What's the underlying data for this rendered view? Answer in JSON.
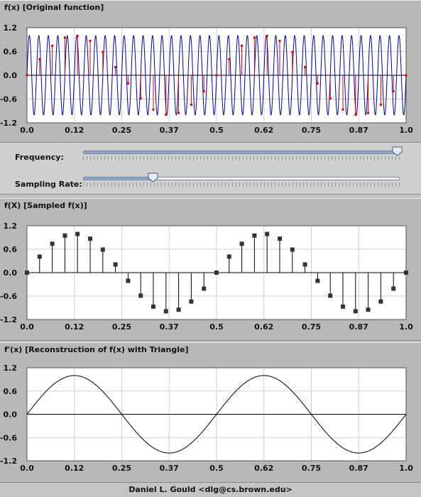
{
  "panels": [
    {
      "title": "f(x) [Original function]"
    },
    {
      "title": "f(X) [Sampled f(x)]"
    },
    {
      "title": "f'(x) [Reconstruction of f(x) with Triangle]"
    }
  ],
  "controls": {
    "frequency": {
      "label": "Frequency:",
      "value": 0.99
    },
    "sampling_rate": {
      "label": "Sampling Rate:",
      "value": 0.22
    }
  },
  "credit": "Daniel L. Gould <dlg@cs.brown.edu>",
  "colors": {
    "wave": "#0000aa",
    "sample": "#dd0000",
    "plot_bg": "#ffffff",
    "grid": "#cfcfcf",
    "stem": "#000000",
    "marker": "#333333"
  },
  "chart_data": [
    {
      "type": "line",
      "title": "f(x) [Original function]",
      "xlim": [
        0,
        1
      ],
      "ylim": [
        -1.2,
        1.2
      ],
      "x_ticks": [
        "0.0",
        "0.12",
        "0.25",
        "0.37",
        "0.5",
        "0.62",
        "0.75",
        "0.87",
        "1.0"
      ],
      "y_ticks": [
        "1.2",
        "0.6",
        "0.0",
        "-0.6",
        "-1.2"
      ],
      "grid": true,
      "series": [
        {
          "kind": "sine",
          "cycles": 40
        },
        {
          "kind": "samples",
          "signal_cycles": 2,
          "count": 30
        }
      ]
    },
    {
      "type": "stem",
      "title": "f(X) [Sampled f(x)]",
      "xlim": [
        0,
        1
      ],
      "ylim": [
        -1.2,
        1.2
      ],
      "x_ticks": [
        "0.0",
        "0.12",
        "0.25",
        "0.37",
        "0.5",
        "0.62",
        "0.75",
        "0.87",
        "1.0"
      ],
      "y_ticks": [
        "1.2",
        "0.6",
        "0.0",
        "-0.6",
        "-1.2"
      ],
      "grid": true,
      "x": [
        0.0,
        0.0333,
        0.0667,
        0.1,
        0.1333,
        0.1667,
        0.2,
        0.2333,
        0.2667,
        0.3,
        0.3333,
        0.3667,
        0.4,
        0.4333,
        0.4667,
        0.5,
        0.5333,
        0.5667,
        0.6,
        0.6333,
        0.6667,
        0.7,
        0.7333,
        0.7667,
        0.8,
        0.8333,
        0.8667,
        0.9,
        0.9333,
        0.9667,
        1.0
      ],
      "values": [
        0.0,
        0.41,
        0.74,
        0.95,
        0.99,
        0.87,
        0.59,
        0.21,
        -0.21,
        -0.59,
        -0.87,
        -0.99,
        -0.95,
        -0.74,
        -0.41,
        0.0,
        0.41,
        0.74,
        0.95,
        0.99,
        0.87,
        0.59,
        0.21,
        -0.21,
        -0.59,
        -0.87,
        -0.99,
        -0.95,
        -0.74,
        -0.41,
        0.0
      ]
    },
    {
      "type": "line",
      "title": "f'(x) [Reconstruction of f(x) with Triangle]",
      "xlim": [
        0,
        1
      ],
      "ylim": [
        -1.2,
        1.2
      ],
      "x_ticks": [
        "0.0",
        "0.12",
        "0.25",
        "0.37",
        "0.5",
        "0.62",
        "0.75",
        "0.87",
        "1.0"
      ],
      "y_ticks": [
        "1.2",
        "0.6",
        "0.0",
        "-0.6",
        "-1.2"
      ],
      "grid": true,
      "series": [
        {
          "kind": "sine",
          "cycles": 2
        }
      ]
    }
  ]
}
